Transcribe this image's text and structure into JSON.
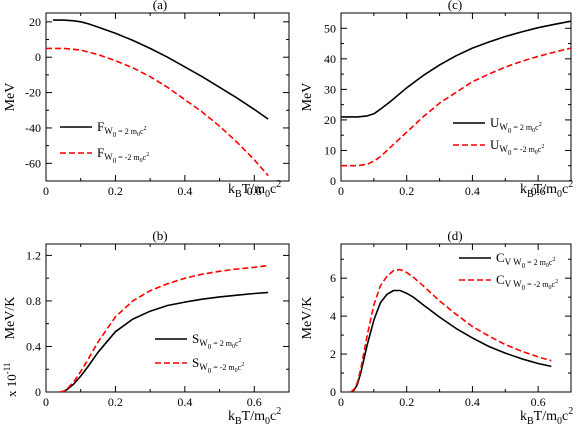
{
  "colors": {
    "black": "#000000",
    "red": "#ff0000"
  },
  "chart_data": [
    {
      "id": "a",
      "type": "line",
      "panel_label": "(a)",
      "ylabel": "MeV",
      "xlabel": {
        "k": "k",
        "sub1": "B",
        "mid": "T/m",
        "sub2": "0",
        "c": "c",
        "sup": "2"
      },
      "xlim": [
        0,
        0.7
      ],
      "ylim": [
        -70,
        25
      ],
      "xticks": [
        0,
        0.2,
        0.4,
        0.6
      ],
      "xtick_labels": [
        "0",
        "0.2",
        "0.4",
        "0.6"
      ],
      "yticks": [
        -60,
        -40,
        -20,
        0,
        20
      ],
      "ytick_labels": [
        "-60",
        "-40",
        "-20",
        "0",
        "20"
      ],
      "legend_position": "bottom-left",
      "series": [
        {
          "sym": "F",
          "sub": "W",
          "subsub": "0",
          "tail": " = 2 m",
          "tailsub": "0",
          "tailend": "c",
          "tailsup": "2",
          "style": "solid",
          "color": "#000000",
          "x": [
            0.02,
            0.05,
            0.08,
            0.1,
            0.12,
            0.15,
            0.2,
            0.25,
            0.3,
            0.35,
            0.4,
            0.45,
            0.5,
            0.55,
            0.6,
            0.64
          ],
          "y": [
            21,
            21,
            20.6,
            20,
            19,
            17,
            13.5,
            9.5,
            5,
            0,
            -5.5,
            -11,
            -17,
            -23,
            -29.5,
            -35
          ]
        },
        {
          "sym": "F",
          "sub": "W",
          "subsub": "0",
          "tail": " = -2 m",
          "tailsub": "0",
          "tailend": "c",
          "tailsup": "2",
          "style": "dashed",
          "color": "#ff0000",
          "x": [
            0.0,
            0.05,
            0.08,
            0.1,
            0.12,
            0.15,
            0.2,
            0.25,
            0.3,
            0.35,
            0.4,
            0.45,
            0.5,
            0.55,
            0.6,
            0.64
          ],
          "y": [
            5,
            5,
            4.5,
            4,
            3,
            1.5,
            -2,
            -6,
            -11,
            -17,
            -24,
            -31,
            -39,
            -48,
            -58,
            -67
          ]
        }
      ]
    },
    {
      "id": "c",
      "type": "line",
      "panel_label": "(c)",
      "ylabel": "MeV",
      "xlabel": {
        "k": "k",
        "sub1": "B",
        "mid": "T/m",
        "sub2": "0",
        "c": "c",
        "sup": "2"
      },
      "xlim": [
        0,
        0.7
      ],
      "ylim": [
        0,
        55
      ],
      "xticks": [
        0,
        0.2,
        0.4,
        0.6
      ],
      "xtick_labels": [
        "0",
        "0.2",
        "0.4",
        "0.6"
      ],
      "yticks": [
        0,
        10,
        20,
        30,
        40,
        50
      ],
      "ytick_labels": [
        "0",
        "10",
        "20",
        "30",
        "40",
        "50"
      ],
      "legend_position": "bottom-right",
      "series": [
        {
          "sym": "U",
          "sub": "W",
          "subsub": "0",
          "tail": " = 2 m",
          "tailsub": "0",
          "tailend": "c",
          "tailsup": "2",
          "style": "solid",
          "color": "#000000",
          "x": [
            0.0,
            0.05,
            0.08,
            0.1,
            0.12,
            0.15,
            0.2,
            0.25,
            0.3,
            0.35,
            0.4,
            0.45,
            0.5,
            0.55,
            0.6,
            0.65,
            0.7
          ],
          "y": [
            21,
            21,
            21.3,
            22,
            23.5,
            26,
            30.5,
            34.5,
            38,
            41,
            43.5,
            45.5,
            47.3,
            48.8,
            50.2,
            51.3,
            52.3
          ]
        },
        {
          "sym": "U",
          "sub": "W",
          "subsub": "0",
          "tail": " = -2 m",
          "tailsub": "0",
          "tailend": "c",
          "tailsup": "2",
          "style": "dashed",
          "color": "#ff0000",
          "x": [
            0.0,
            0.05,
            0.08,
            0.1,
            0.12,
            0.15,
            0.2,
            0.25,
            0.3,
            0.35,
            0.4,
            0.45,
            0.5,
            0.55,
            0.6,
            0.65,
            0.7
          ],
          "y": [
            5,
            5,
            5.5,
            6.5,
            8,
            11,
            16,
            21,
            25.5,
            29,
            32.5,
            35,
            37.3,
            39.2,
            40.8,
            42.2,
            43.5
          ]
        }
      ]
    },
    {
      "id": "b",
      "type": "line",
      "panel_label": "(b)",
      "ylabel": "MeV/K",
      "yfactor": {
        "base": "x 10",
        "exp": "-11"
      },
      "xlabel": {
        "k": "k",
        "sub1": "B",
        "mid": "T/m",
        "sub2": "0",
        "c": "c",
        "sup": "2"
      },
      "xlim": [
        0,
        0.7
      ],
      "ylim": [
        0,
        1.3
      ],
      "xticks": [
        0,
        0.2,
        0.4,
        0.6
      ],
      "xtick_labels": [
        "0",
        "0.2",
        "0.4",
        "0.6"
      ],
      "yticks": [
        0,
        0.4,
        0.8,
        1.2
      ],
      "ytick_labels": [
        "0",
        "0.4",
        "0.8",
        "1.2"
      ],
      "legend_position": "bottom-right",
      "series": [
        {
          "sym": "S",
          "sub": "W",
          "subsub": "0",
          "tail": " = 2 m",
          "tailsub": "0",
          "tailend": "c",
          "tailsup": "2",
          "style": "solid",
          "color": "#000000",
          "x": [
            0.04,
            0.05,
            0.06,
            0.08,
            0.1,
            0.12,
            0.15,
            0.2,
            0.25,
            0.3,
            0.35,
            0.4,
            0.45,
            0.5,
            0.55,
            0.6,
            0.64
          ],
          "y": [
            0,
            0.005,
            0.02,
            0.07,
            0.14,
            0.22,
            0.35,
            0.53,
            0.64,
            0.71,
            0.76,
            0.79,
            0.815,
            0.835,
            0.85,
            0.865,
            0.875
          ]
        },
        {
          "sym": "S",
          "sub": "W",
          "subsub": "0",
          "tail": " = -2 m",
          "tailsub": "0",
          "tailend": "c",
          "tailsup": "2",
          "style": "dashed",
          "color": "#ff0000",
          "x": [
            0.04,
            0.05,
            0.06,
            0.08,
            0.1,
            0.12,
            0.15,
            0.2,
            0.25,
            0.3,
            0.35,
            0.4,
            0.45,
            0.5,
            0.55,
            0.6,
            0.64
          ],
          "y": [
            0,
            0.005,
            0.025,
            0.09,
            0.18,
            0.28,
            0.44,
            0.66,
            0.8,
            0.89,
            0.95,
            1.0,
            1.035,
            1.06,
            1.08,
            1.095,
            1.11
          ]
        }
      ]
    },
    {
      "id": "d",
      "type": "line",
      "panel_label": "(d)",
      "ylabel": "MeV/K",
      "xlabel": {
        "k": "k",
        "sub1": "B",
        "mid": "T/m",
        "sub2": "0",
        "c": "c",
        "sup": "2"
      },
      "xlim": [
        0,
        0.7
      ],
      "ylim": [
        0,
        7.8
      ],
      "xticks": [
        0,
        0.2,
        0.4,
        0.6
      ],
      "xtick_labels": [
        "0",
        "0.2",
        "0.4",
        "0.6"
      ],
      "yticks": [
        0,
        2,
        4,
        6
      ],
      "ytick_labels": [
        "0",
        "2",
        "4",
        "6"
      ],
      "legend_position": "top-right",
      "series": [
        {
          "sym": "C",
          "sub": "V",
          "subsub": "",
          "sub2": "W",
          "sub2sub": "0",
          "tail": " = 2 m",
          "tailsub": "0",
          "tailend": "c",
          "tailsup": "2",
          "style": "solid",
          "color": "#000000",
          "x": [
            0.03,
            0.04,
            0.05,
            0.06,
            0.08,
            0.1,
            0.12,
            0.14,
            0.16,
            0.18,
            0.2,
            0.22,
            0.25,
            0.3,
            0.35,
            0.4,
            0.45,
            0.5,
            0.55,
            0.6,
            0.64
          ],
          "y": [
            0,
            0.1,
            0.4,
            1.0,
            2.5,
            3.8,
            4.7,
            5.15,
            5.35,
            5.35,
            5.2,
            5.0,
            4.6,
            3.95,
            3.35,
            2.85,
            2.4,
            2.05,
            1.75,
            1.5,
            1.35
          ]
        },
        {
          "sym": "C",
          "sub": "V",
          "subsub": "",
          "sub2": "W",
          "sub2sub": "0",
          "tail": " = -2 m",
          "tailsub": "0",
          "tailend": "c",
          "tailsup": "2",
          "style": "dashed",
          "color": "#ff0000",
          "x": [
            0.03,
            0.04,
            0.05,
            0.06,
            0.08,
            0.1,
            0.12,
            0.14,
            0.16,
            0.18,
            0.2,
            0.22,
            0.25,
            0.3,
            0.35,
            0.4,
            0.45,
            0.5,
            0.55,
            0.6,
            0.64
          ],
          "y": [
            0,
            0.15,
            0.5,
            1.2,
            3.0,
            4.6,
            5.6,
            6.1,
            6.4,
            6.45,
            6.3,
            6.05,
            5.6,
            4.8,
            4.1,
            3.45,
            2.95,
            2.5,
            2.15,
            1.85,
            1.65
          ]
        }
      ]
    }
  ]
}
